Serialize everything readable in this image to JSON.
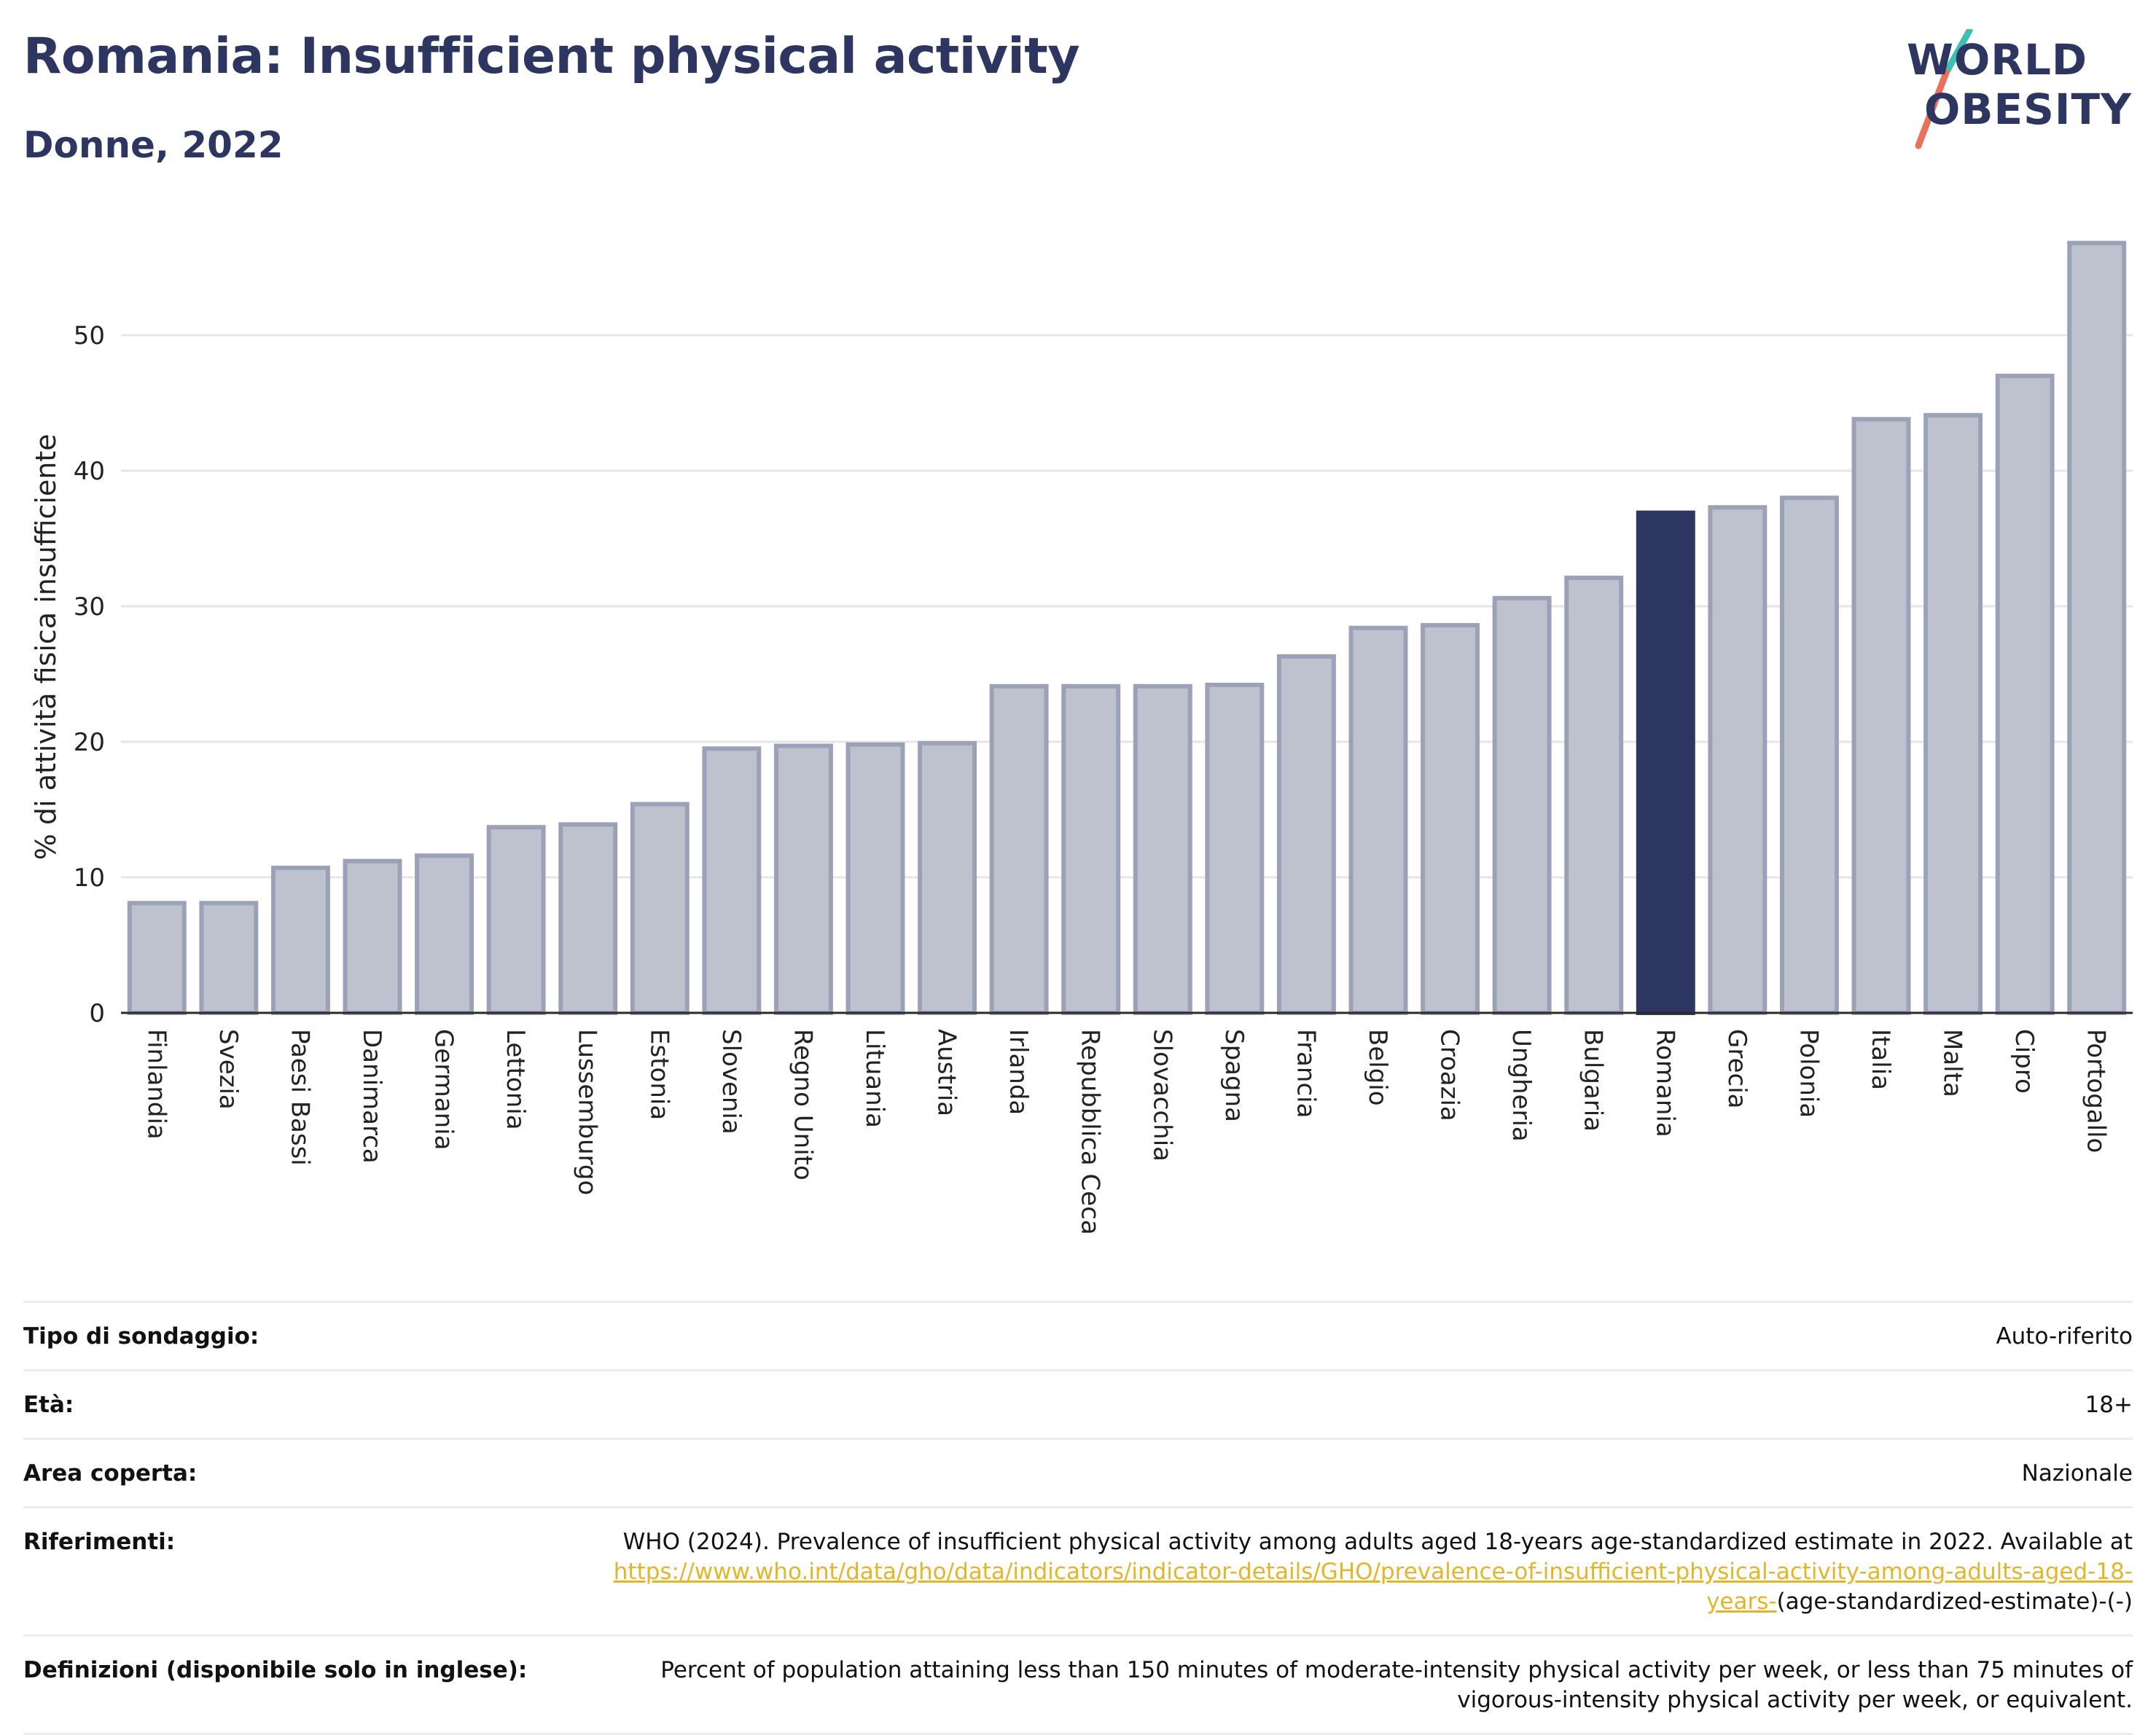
{
  "header": {
    "title": "Romania: Insufficient physical activity",
    "subtitle": "Donne, 2022",
    "logo_line1": "WORLD",
    "logo_line2": "OBESITY"
  },
  "colors": {
    "bar": "#bec1ce",
    "bar_border": "#9ba1b7",
    "highlight": "#2c3660",
    "grid": "#e6e6e6",
    "logo_teal": "#3fbfb4",
    "logo_coral": "#e8705c"
  },
  "chart_data": {
    "type": "bar",
    "title": "Romania: Insufficient physical activity",
    "subtitle": "Donne, 2022",
    "xlabel": "",
    "ylabel": "% di attività fisica insufficiente",
    "ylim": [
      0,
      58
    ],
    "yticks": [
      0,
      10,
      20,
      30,
      40,
      50
    ],
    "grid": true,
    "highlight_category": "Romania",
    "categories": [
      "Finlandia",
      "Svezia",
      "Paesi Bassi",
      "Danimarca",
      "Germania",
      "Lettonia",
      "Lussemburgo",
      "Estonia",
      "Slovenia",
      "Regno Unito",
      "Lituania",
      "Austria",
      "Irlanda",
      "Repubblica Ceca",
      "Slovacchia",
      "Spagna",
      "Francia",
      "Belgio",
      "Croazia",
      "Ungheria",
      "Bulgaria",
      "Romania",
      "Grecia",
      "Polonia",
      "Italia",
      "Malta",
      "Cipro",
      "Portogallo"
    ],
    "values": [
      8.1,
      8.1,
      10.7,
      11.2,
      11.6,
      13.7,
      13.9,
      15.4,
      19.5,
      19.7,
      19.8,
      19.9,
      24.1,
      24.1,
      24.1,
      24.2,
      26.3,
      28.4,
      28.6,
      30.6,
      32.1,
      36.9,
      37.3,
      38.0,
      43.8,
      44.1,
      47.0,
      56.8
    ]
  },
  "meta": {
    "rows": [
      {
        "label": "Tipo di sondaggio:",
        "value": "Auto-riferito"
      },
      {
        "label": "Età:",
        "value": "18+"
      },
      {
        "label": "Area coperta:",
        "value": "Nazionale"
      },
      {
        "label": "Riferimenti:",
        "value_pre": "WHO (2024). Prevalence of insufficient physical activity among adults aged 18-years age-standardized estimate in 2022. Available at ",
        "value_link": "https://www.who.int/data/gho/data/indicators/indicator-details/GHO/prevalence-of-insufficient-physical-activity-among-adults-aged-18-years-",
        "value_post": "(age-standardized-estimate)-(-)"
      },
      {
        "label": "Definizioni (disponibile solo in inglese):",
        "value": "Percent of population attaining less than 150 minutes of moderate-intensity physical activity per week, or less than 75 minutes of vigorous-intensity physical activity per week, or equivalent."
      }
    ]
  }
}
